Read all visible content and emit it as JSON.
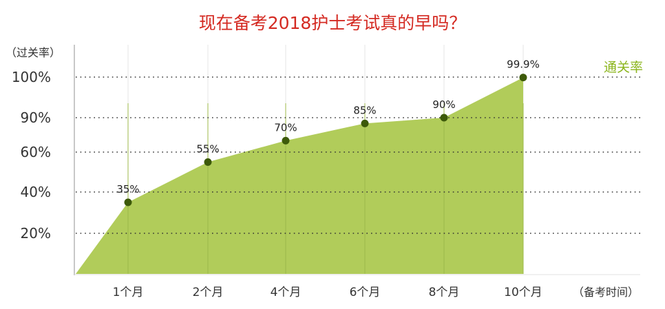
{
  "chart_data": {
    "type": "area",
    "title": "现在备考2018护士考试真的早吗？",
    "ylabel": "（过关率）",
    "xlabel": "（备考时间）",
    "legend": {
      "label": "通关率",
      "placement": "top-right"
    },
    "categories": [
      "1个月",
      "2个月",
      "4个月",
      "6个月",
      "8个月",
      "10个月"
    ],
    "series": [
      {
        "name": "通关率",
        "values": [
          35,
          55,
          70,
          85,
          90,
          99.9
        ],
        "labels": [
          "35%",
          "55%",
          "70%",
          "85%",
          "90%",
          "99.9%"
        ]
      }
    ],
    "y_ticks": [
      20,
      40,
      60,
      90,
      100
    ],
    "y_tick_labels": [
      "20%",
      "40%",
      "60%",
      "90%",
      "100%"
    ],
    "ylim": [
      0,
      100
    ],
    "grid": "horizontal dotted",
    "colors": {
      "fill": "#b1cc5a",
      "marker": "#3d5a0a",
      "title": "#d42a22",
      "legend": "#8bb51c"
    }
  }
}
